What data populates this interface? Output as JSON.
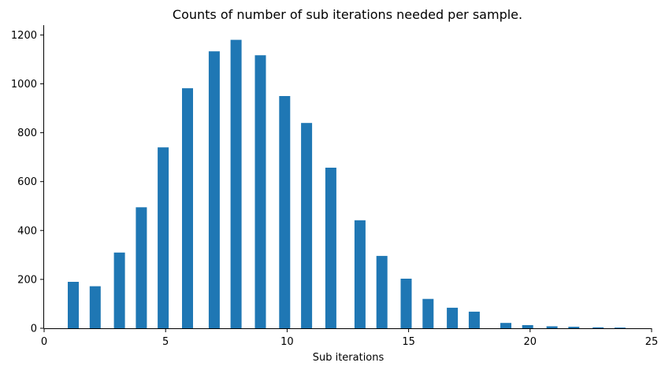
{
  "chart_data": {
    "type": "bar",
    "title": "Counts of number of sub iterations needed per sample.",
    "xlabel": "Sub iterations",
    "ylabel": "",
    "xlim": [
      0,
      25
    ],
    "ylim": [
      0,
      1240
    ],
    "xticks": [
      0,
      5,
      10,
      15,
      20,
      25
    ],
    "yticks": [
      0,
      200,
      400,
      600,
      800,
      1000,
      1200
    ],
    "grid": false,
    "bar_color": "#1f77b4",
    "x": [
      1.2,
      2.1,
      3.1,
      4.0,
      4.9,
      5.9,
      7.0,
      7.9,
      8.9,
      9.9,
      10.8,
      11.8,
      13.0,
      13.9,
      14.9,
      15.8,
      16.8,
      17.7,
      19.0,
      19.9,
      20.9,
      21.8,
      22.8,
      23.7
    ],
    "values": [
      190,
      172,
      310,
      495,
      740,
      982,
      1133,
      1180,
      1117,
      950,
      840,
      657,
      442,
      296,
      203,
      120,
      84,
      68,
      22,
      13,
      8,
      6,
      4,
      3
    ]
  }
}
